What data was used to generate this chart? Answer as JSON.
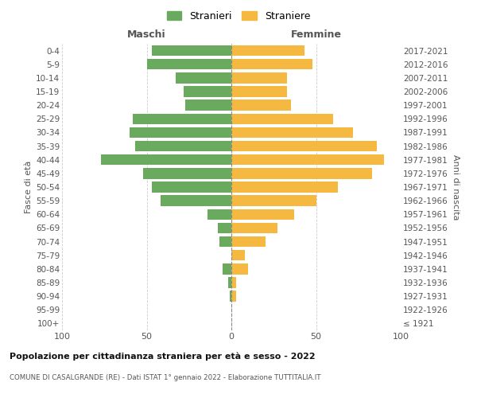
{
  "age_groups": [
    "100+",
    "95-99",
    "90-94",
    "85-89",
    "80-84",
    "75-79",
    "70-74",
    "65-69",
    "60-64",
    "55-59",
    "50-54",
    "45-49",
    "40-44",
    "35-39",
    "30-34",
    "25-29",
    "20-24",
    "15-19",
    "10-14",
    "5-9",
    "0-4"
  ],
  "birth_years": [
    "≤ 1921",
    "1922-1926",
    "1927-1931",
    "1932-1936",
    "1937-1941",
    "1942-1946",
    "1947-1951",
    "1952-1956",
    "1957-1961",
    "1962-1966",
    "1967-1971",
    "1972-1976",
    "1977-1981",
    "1982-1986",
    "1987-1991",
    "1992-1996",
    "1997-2001",
    "2002-2006",
    "2007-2011",
    "2012-2016",
    "2017-2021"
  ],
  "maschi": [
    0,
    0,
    1,
    2,
    5,
    0,
    7,
    8,
    14,
    42,
    47,
    52,
    77,
    57,
    60,
    58,
    27,
    28,
    33,
    50,
    47
  ],
  "femmine": [
    0,
    0,
    3,
    3,
    10,
    8,
    20,
    27,
    37,
    50,
    63,
    83,
    90,
    86,
    72,
    60,
    35,
    33,
    33,
    48,
    43
  ],
  "male_color": "#6aaa5e",
  "female_color": "#f5b942",
  "background_color": "#ffffff",
  "grid_color": "#cccccc",
  "title": "Popolazione per cittadinanza straniera per età e sesso - 2022",
  "subtitle": "COMUNE DI CASALGRANDE (RE) - Dati ISTAT 1° gennaio 2022 - Elaborazione TUTTITALIA.IT",
  "xlabel_left": "Maschi",
  "xlabel_right": "Femmine",
  "ylabel_left": "Fasce di età",
  "ylabel_right": "Anni di nascita",
  "legend_male": "Stranieri",
  "legend_female": "Straniere",
  "xlim": 100
}
